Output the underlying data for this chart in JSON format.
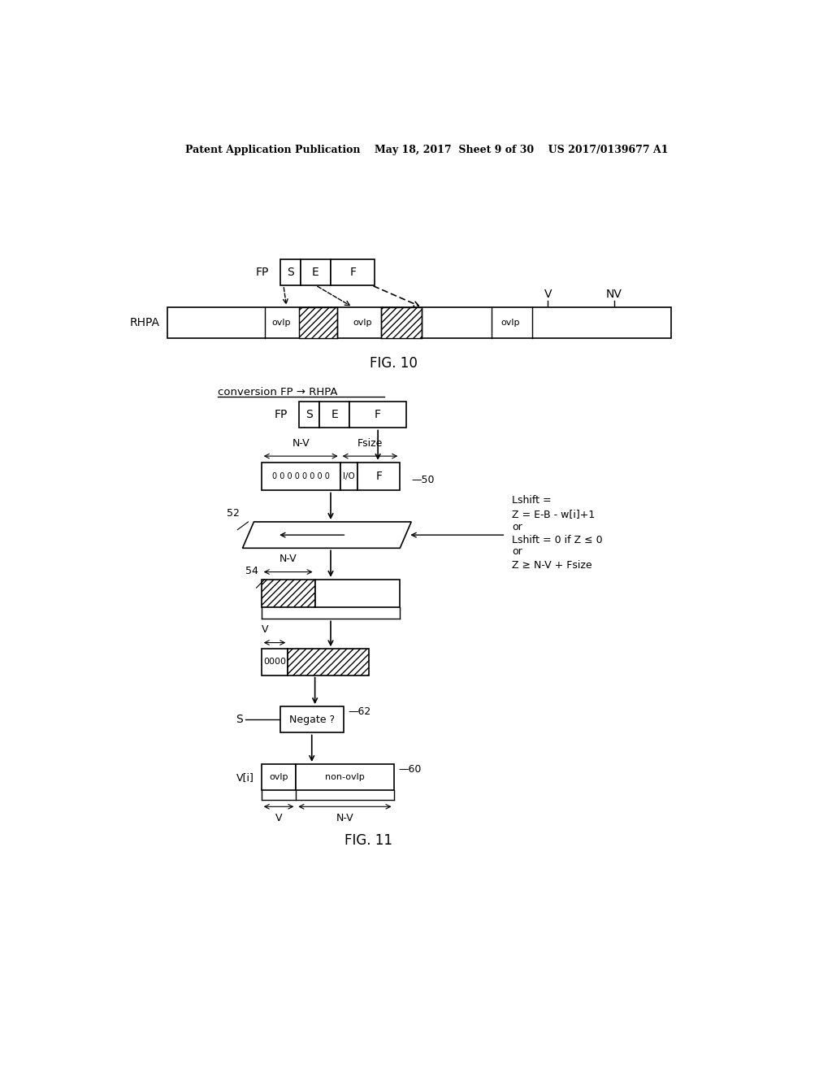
{
  "bg_color": "#ffffff",
  "header_text": "Patent Application Publication    May 18, 2017  Sheet 9 of 30    US 2017/0139677 A1",
  "fig10_label": "FIG. 10",
  "fig11_label": "FIG. 11",
  "conversion_label": "conversion FP → RHPA"
}
